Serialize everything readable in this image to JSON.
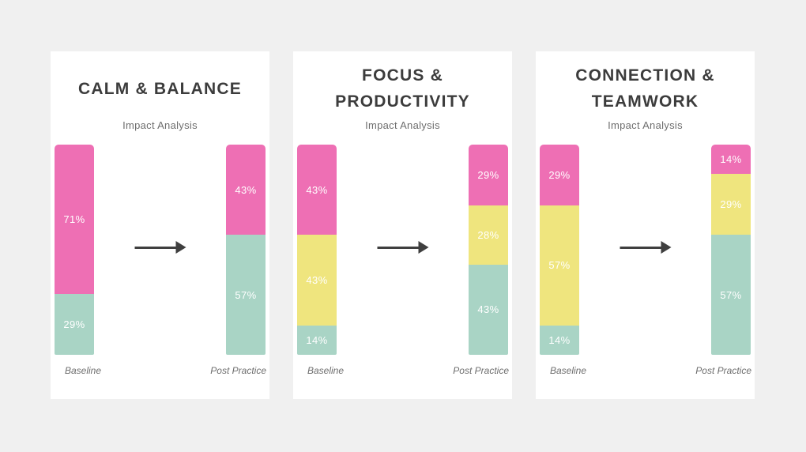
{
  "page": {
    "background": "#f0f0f0"
  },
  "colors": {
    "pink": "#ee6fb4",
    "yellow": "#efe57e",
    "teal": "#a9d4c5",
    "title_text": "#3c3c3c",
    "muted_text": "#6e6e6e",
    "arrow": "#3f3f3f",
    "card_background": "#ffffff",
    "value_text": "#ffffff"
  },
  "cards": [
    {
      "title": "CALM & BALANCE",
      "subtitle": "Impact Analysis",
      "bars": [
        {
          "label": "Baseline",
          "segments": [
            {
              "color": "pink",
              "percent": 71,
              "text": "71%"
            },
            {
              "color": "teal",
              "percent": 29,
              "text": "29%"
            }
          ]
        },
        {
          "label": "Post Practice",
          "segments": [
            {
              "color": "pink",
              "percent": 43,
              "text": "43%"
            },
            {
              "color": "teal",
              "percent": 57,
              "text": "57%"
            }
          ]
        }
      ]
    },
    {
      "title": "FOCUS & PRODUCTIVITY",
      "subtitle": "Impact Analysis",
      "bars": [
        {
          "label": "Baseline",
          "segments": [
            {
              "color": "pink",
              "percent": 43,
              "text": "43%"
            },
            {
              "color": "yellow",
              "percent": 43,
              "text": "43%"
            },
            {
              "color": "teal",
              "percent": 14,
              "text": "14%"
            }
          ]
        },
        {
          "label": "Post Practice",
          "segments": [
            {
              "color": "pink",
              "percent": 29,
              "text": "29%"
            },
            {
              "color": "yellow",
              "percent": 28,
              "text": "28%"
            },
            {
              "color": "teal",
              "percent": 43,
              "text": "43%"
            }
          ]
        }
      ]
    },
    {
      "title": "CONNECTION & TEAMWORK",
      "subtitle": "Impact Analysis",
      "bars": [
        {
          "label": "Baseline",
          "segments": [
            {
              "color": "pink",
              "percent": 29,
              "text": "29%"
            },
            {
              "color": "yellow",
              "percent": 57,
              "text": "57%"
            },
            {
              "color": "teal",
              "percent": 14,
              "text": "14%"
            }
          ]
        },
        {
          "label": "Post Practice",
          "segments": [
            {
              "color": "pink",
              "percent": 14,
              "text": "14%"
            },
            {
              "color": "yellow",
              "percent": 29,
              "text": "29%"
            },
            {
              "color": "teal",
              "percent": 57,
              "text": "57%"
            }
          ]
        }
      ]
    }
  ],
  "chart_data": [
    {
      "type": "bar",
      "subtype": "stacked-percentage",
      "title": "CALM & BALANCE",
      "subtitle": "Impact Analysis",
      "categories": [
        "Baseline",
        "Post Practice"
      ],
      "series": [
        {
          "name": "pink",
          "color": "#ee6fb4",
          "values": [
            71,
            43
          ]
        },
        {
          "name": "teal",
          "color": "#a9d4c5",
          "values": [
            29,
            57
          ]
        }
      ],
      "unit": "%",
      "ylim": [
        0,
        100
      ],
      "grid": false,
      "legend": "none",
      "annotations": [
        "arrow from Baseline to Post Practice"
      ]
    },
    {
      "type": "bar",
      "subtype": "stacked-percentage",
      "title": "FOCUS & PRODUCTIVITY",
      "subtitle": "Impact Analysis",
      "categories": [
        "Baseline",
        "Post Practice"
      ],
      "series": [
        {
          "name": "pink",
          "color": "#ee6fb4",
          "values": [
            43,
            29
          ]
        },
        {
          "name": "yellow",
          "color": "#efe57e",
          "values": [
            43,
            28
          ]
        },
        {
          "name": "teal",
          "color": "#a9d4c5",
          "values": [
            14,
            43
          ]
        }
      ],
      "unit": "%",
      "ylim": [
        0,
        100
      ],
      "grid": false,
      "legend": "none",
      "annotations": [
        "arrow from Baseline to Post Practice"
      ]
    },
    {
      "type": "bar",
      "subtype": "stacked-percentage",
      "title": "CONNECTION & TEAMWORK",
      "subtitle": "Impact Analysis",
      "categories": [
        "Baseline",
        "Post Practice"
      ],
      "series": [
        {
          "name": "pink",
          "color": "#ee6fb4",
          "values": [
            29,
            14
          ]
        },
        {
          "name": "yellow",
          "color": "#efe57e",
          "values": [
            57,
            29
          ]
        },
        {
          "name": "teal",
          "color": "#a9d4c5",
          "values": [
            14,
            57
          ]
        }
      ],
      "unit": "%",
      "ylim": [
        0,
        100
      ],
      "grid": false,
      "legend": "none",
      "annotations": [
        "arrow from Baseline to Post Practice"
      ]
    }
  ]
}
